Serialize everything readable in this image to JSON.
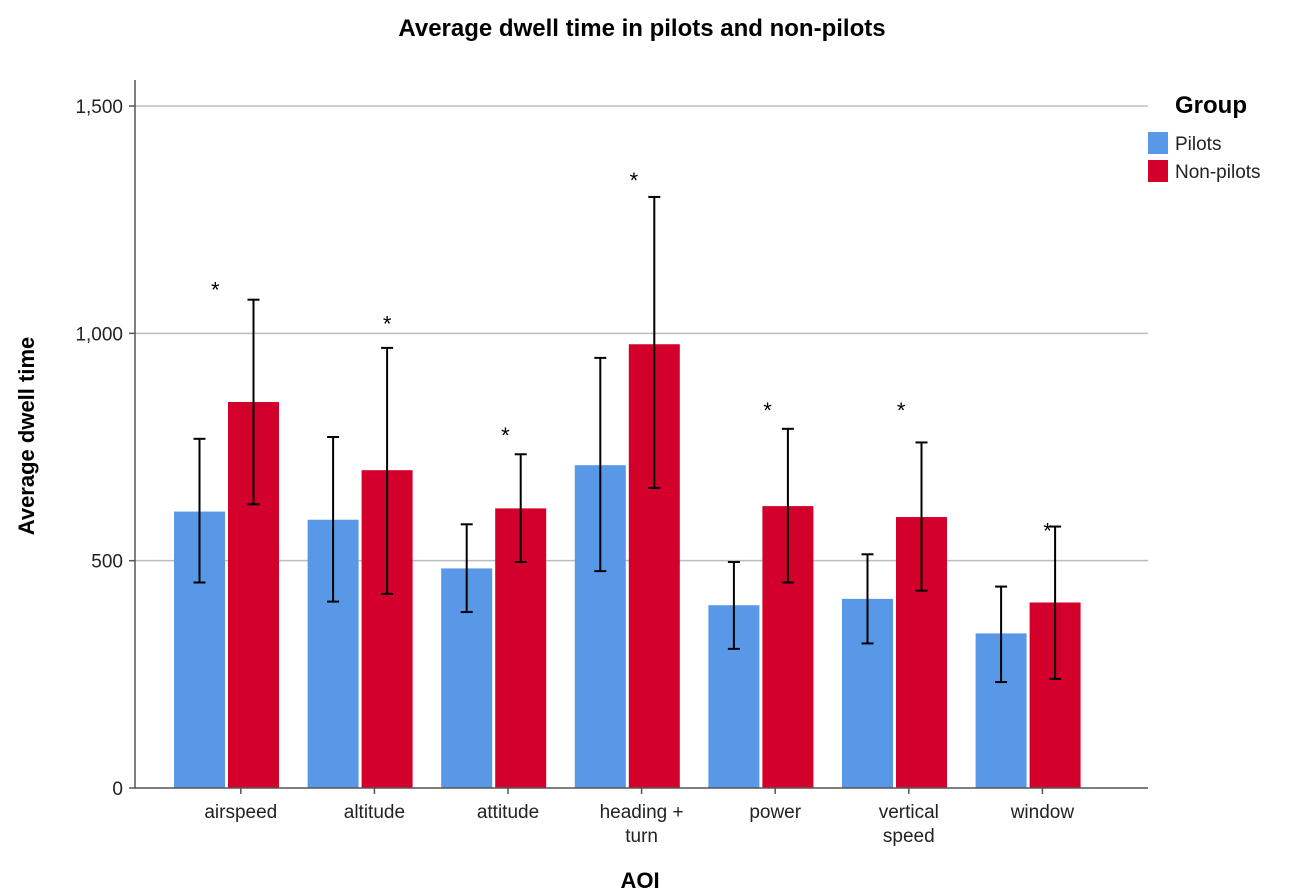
{
  "chart_data": {
    "type": "bar",
    "title": "Average dwell time in pilots and non-pilots",
    "xlabel": "AOI",
    "ylabel": "Average dwell time",
    "ylim": [
      0,
      1500
    ],
    "yticks": [
      0,
      500,
      1000,
      1500
    ],
    "ytick_labels": [
      "0",
      "500",
      "1,000",
      "1,500"
    ],
    "grid": true,
    "categories": [
      [
        "airspeed"
      ],
      [
        "altitude"
      ],
      [
        "attitude"
      ],
      [
        "heading +",
        "turn"
      ],
      [
        "power"
      ],
      [
        "vertical",
        "speed"
      ],
      [
        "window"
      ]
    ],
    "legend": {
      "title": "Group",
      "position": "top-right"
    },
    "series": [
      {
        "name": "Pilots",
        "color": "#5898e6",
        "values": [
          608,
          590,
          483,
          710,
          402,
          416,
          340
        ],
        "err_low": [
          452,
          410,
          387,
          477,
          306,
          318,
          233
        ],
        "err_high": [
          768,
          772,
          580,
          946,
          497,
          514,
          443
        ]
      },
      {
        "name": "Non-pilots",
        "color": "#d3002c",
        "values": [
          849,
          699,
          615,
          976,
          620,
          596,
          408
        ],
        "err_low": [
          624,
          427,
          497,
          660,
          452,
          434,
          240
        ],
        "err_high": [
          1074,
          968,
          734,
          1300,
          790,
          760,
          575
        ]
      }
    ],
    "annotations": [
      {
        "text": "*",
        "category": 0,
        "y": 1110,
        "offset": -0.5
      },
      {
        "text": "*",
        "category": 1,
        "y": 1035,
        "offset": 0.25
      },
      {
        "text": "*",
        "category": 2,
        "y": 790,
        "offset": -0.05
      },
      {
        "text": "*",
        "category": 3,
        "y": 1350,
        "offset": -0.15
      },
      {
        "text": "*",
        "category": 4,
        "y": 845,
        "offset": -0.15
      },
      {
        "text": "*",
        "category": 5,
        "y": 845,
        "offset": -0.15
      },
      {
        "text": "*",
        "category": 6,
        "y": 580,
        "offset": 0.1
      }
    ]
  }
}
